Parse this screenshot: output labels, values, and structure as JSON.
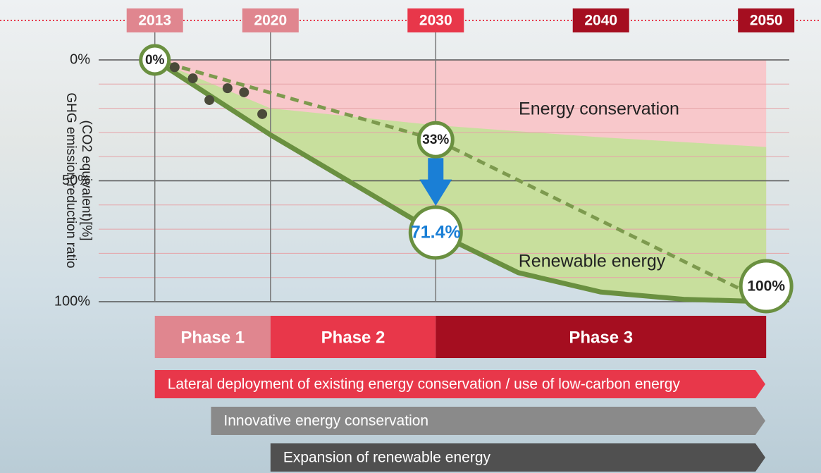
{
  "chart_data": {
    "type": "line",
    "ylabel": [
      "GHG emission reduction ratio",
      "(CO2 equivalent)[%]"
    ],
    "xlim": [
      2009.6,
      2051.4
    ],
    "xticks": [
      2013,
      2020,
      2030,
      2040,
      2050
    ],
    "xtick_colors": [
      "#e0868f",
      "#e0868f",
      "#e8374a",
      "#a50e20",
      "#a50e20"
    ],
    "x_grid": [
      2013,
      2020,
      2030
    ],
    "ylim": [
      0,
      100
    ],
    "yticks": [
      {
        "value": 0,
        "label": "0%"
      },
      {
        "value": 50,
        "label": "50%"
      },
      {
        "value": 100,
        "label": "100%"
      }
    ],
    "minor_yticks": [
      10,
      20,
      30,
      40,
      60,
      70,
      80,
      90
    ],
    "conservation_area": {
      "label": "Energy conservation",
      "color": "#f9c4c8"
    },
    "renewable_area": {
      "label": "Renewable energy",
      "color": "#c5e09a",
      "x": [
        2013,
        2020,
        2030,
        2040,
        2050
      ],
      "values": [
        0,
        20,
        27,
        32,
        36
      ]
    },
    "series": [
      {
        "style": "dashed",
        "color": "#7d9a4e",
        "x": [
          2013,
          2030,
          2050
        ],
        "values": [
          0,
          33,
          100
        ],
        "value_labels": [
          "0%",
          "33%",
          "100%"
        ]
      },
      {
        "style": "solid",
        "color": "#6a9040",
        "x": [
          2013,
          2020,
          2030,
          2035,
          2040,
          2045,
          2050
        ],
        "values": [
          0,
          31,
          71.4,
          88,
          96,
          99,
          100
        ],
        "value_labels": [
          null,
          null,
          "71.4%",
          null,
          null,
          null,
          null
        ]
      },
      {
        "style": "dots",
        "color": "#4a4a3a",
        "x": [
          2014.2,
          2015.3,
          2016.3,
          2017.4,
          2018.4,
          2019.5
        ],
        "values": [
          3,
          7.6,
          16.6,
          11.7,
          13.4,
          22.4
        ]
      }
    ],
    "phases": [
      {
        "label": "Phase 1",
        "start": 2013,
        "end": 2020,
        "color": "#e0868f"
      },
      {
        "label": "Phase 2",
        "start": 2020,
        "end": 2030,
        "color": "#e8374a"
      },
      {
        "label": "Phase 3",
        "start": 2030,
        "end": 2050,
        "color": "#a50e20"
      }
    ],
    "initiatives": [
      {
        "label": "Lateral deployment of existing energy conservation / use of low-carbon energy",
        "start": 2013,
        "color": "#e8374a"
      },
      {
        "label": "Innovative energy conservation",
        "start": 2016.4,
        "color": "#8a8a8a"
      },
      {
        "label": "Expansion of renewable energy",
        "start": 2020,
        "color": "#505050"
      }
    ]
  }
}
